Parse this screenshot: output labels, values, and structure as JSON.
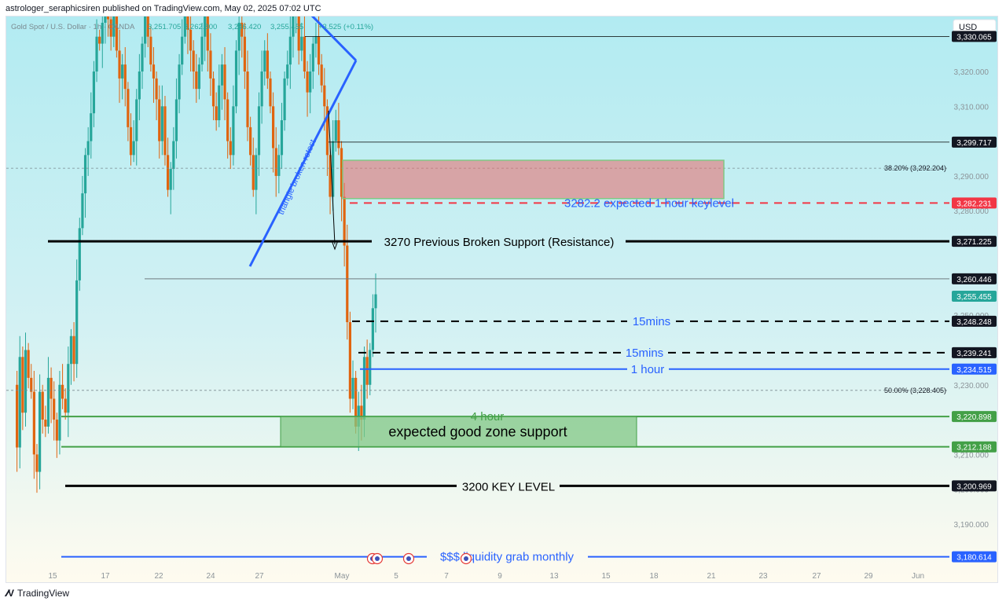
{
  "header": {
    "text": "astrologer_seraphicsiren published on TradingView.com, May 02, 2025 07:02 UTC"
  },
  "footer": {
    "brand": "TradingView"
  },
  "colors": {
    "bg_top": "#b2ebf2",
    "bg_bottom": "#fffbef",
    "up": "#26a69a",
    "down": "#e0640f",
    "blue": "#2962ff",
    "black": "#000000",
    "green": "#43a047",
    "green_zone": "#81c784",
    "red_zone": "#e57373",
    "red_dash": "#f23645"
  },
  "chart_data": {
    "type": "candlestick",
    "symbol_line": {
      "name": "Gold Spot / U.S. Dollar · 1h · OANDA",
      "open": "3,251.705",
      "high": "3,262.800",
      "low": "3,246.420",
      "close": "3,255.455",
      "change": "+3.525 (+0.11%)"
    },
    "currency": "USD",
    "ylim": [
      3187,
      3338
    ],
    "y_ticks": [
      3190,
      3200,
      3210,
      3230,
      3250,
      3280,
      3290,
      3300,
      3310,
      3320
    ],
    "y_tick_labels": [
      "3,190.000",
      "3,200.000",
      "3,210.000",
      "3,230.000",
      "3,250.000",
      "3,280.000",
      "3,290.000",
      "3,300.000",
      "3,310.000",
      "3,320.000"
    ],
    "x_ticks": [
      "15",
      "17",
      "22",
      "24",
      "27",
      "May",
      "5",
      "7",
      "9",
      "13",
      "15",
      "18",
      "21",
      "23",
      "27",
      "29",
      "Jun"
    ],
    "price_labels": [
      {
        "value": 3330.065,
        "label": "3,330.065",
        "style": "dark"
      },
      {
        "value": 3299.717,
        "label": "3,299.717",
        "style": "dark"
      },
      {
        "value": 3282.231,
        "label": "3,282.231",
        "style": "red"
      },
      {
        "value": 3271.225,
        "label": "3,271.225",
        "style": "dark"
      },
      {
        "value": 3260.446,
        "label": "3,260.446",
        "style": "dark"
      },
      {
        "value": 3255.455,
        "label": "3,255.455",
        "style": "teal"
      },
      {
        "value": 3248.248,
        "label": "3,248.248",
        "style": "dark"
      },
      {
        "value": 3239.241,
        "label": "3,239.241",
        "style": "dark"
      },
      {
        "value": 3234.515,
        "label": "3,234.515",
        "style": "blue"
      },
      {
        "value": 3220.898,
        "label": "3,220.898",
        "style": "green"
      },
      {
        "value": 3212.188,
        "label": "3,212.188",
        "style": "green"
      },
      {
        "value": 3200.969,
        "label": "3,200.969",
        "style": "dark"
      },
      {
        "value": 3180.614,
        "label": "3,180.614",
        "style": "blue"
      }
    ],
    "fib_levels": [
      {
        "value": 3292.204,
        "label": "38.20% (3,292.204)"
      },
      {
        "value": 3228.405,
        "label": "50.00% (3,228.405)"
      }
    ],
    "annotations": {
      "keylevel_1h": "3282.2 expected 1 hour keylevel",
      "prev_support": "3270 Previous Broken Support (Resistance)",
      "m15_a": "15mins",
      "m15_b": "15mins",
      "h1": "1 hour",
      "h4": "4 hour",
      "good_zone": "expected good zone support",
      "key3200": "3200 KEY LEVEL",
      "liquidity": "$$$ liquidity grab monthly",
      "triangle": "triangle broken retest"
    },
    "zones": [
      {
        "name": "resistance-zone",
        "top": 3294.5,
        "bottom": 3283.5
      },
      {
        "name": "support-zone",
        "top": 3220.9,
        "bottom": 3212.2
      }
    ]
  }
}
